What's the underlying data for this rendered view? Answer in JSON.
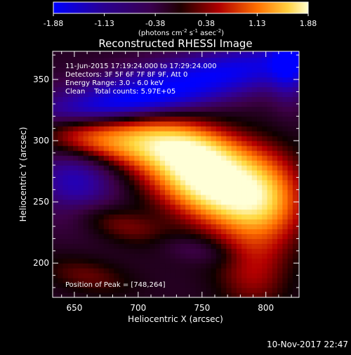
{
  "colorbar": {
    "tick_labels": [
      "-1.88",
      "-1.13",
      "-0.38",
      "0.38",
      "1.13",
      "1.88"
    ],
    "units": "(photons cm",
    "units_sup1": "-2",
    "units_mid": " s",
    "units_sup2": "-1",
    "units_end": " asec",
    "units_sup3": "-2",
    "units_close": ")"
  },
  "footer": {
    "timestamp": "10-Nov-2017 22:47"
  },
  "chart_data": {
    "type": "heatmap",
    "title": "Reconstructed RHESSI Image",
    "xlabel": "Heliocentric X (arcsec)",
    "ylabel": "Heliocentric Y (arcsec)",
    "xlim": [
      633,
      826
    ],
    "ylim": [
      172,
      373
    ],
    "x_ticks": [
      650,
      700,
      750,
      800
    ],
    "y_ticks": [
      200,
      250,
      300,
      350
    ],
    "color_range": [
      -1.88,
      1.88
    ],
    "colormap": [
      "#0000ff",
      "#3a0060",
      "#000000",
      "#b30000",
      "#ff9000",
      "#ffffd0"
    ],
    "info_lines": [
      "11-Jun-2015 17:19:24.000 to 17:29:24.000",
      "Detectors: 3F 5F 6F 7F 8F 9F, Att 0",
      "Energy Range: 3.0 - 6.0 keV",
      "Clean    Total counts: 5.97E+05"
    ],
    "peak_label": "Position of Peak = [748,264]",
    "peak": [
      748,
      264
    ]
  }
}
